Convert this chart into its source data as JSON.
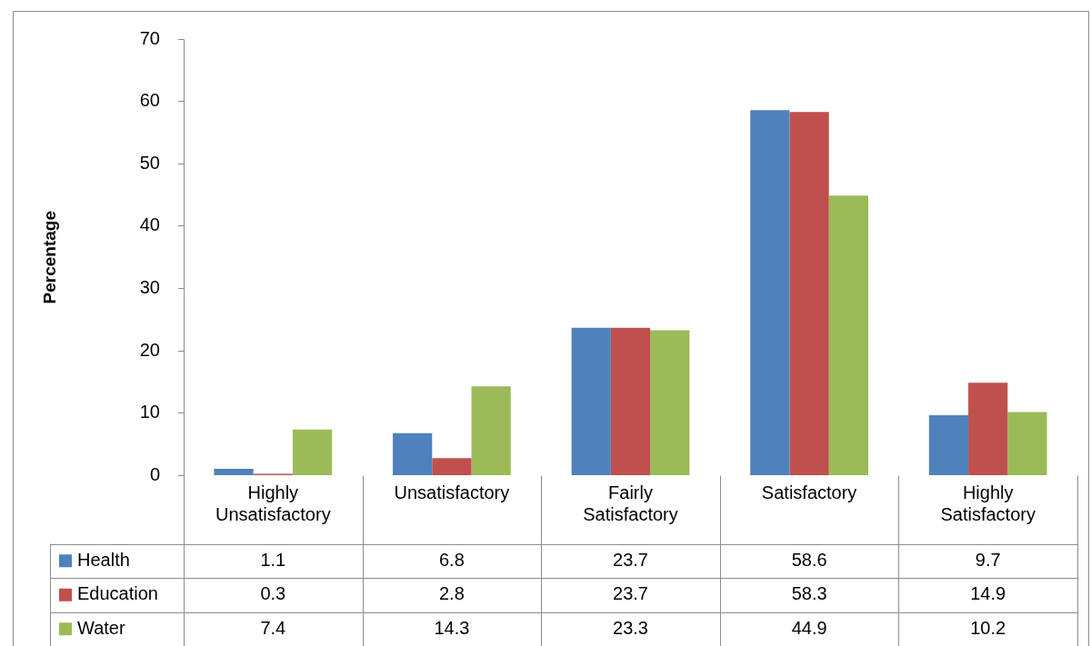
{
  "chart_data": {
    "type": "bar",
    "ylabel": "Percentage",
    "categories": [
      "Highly Unsatisfactory",
      "Unsatisfactory",
      "Fairly Satisfactory",
      "Satisfactory",
      "Highly Satisfactory"
    ],
    "series": [
      {
        "name": "Health",
        "color": "#4f81bd",
        "values": [
          1.1,
          6.8,
          23.7,
          58.6,
          9.7
        ]
      },
      {
        "name": "Education",
        "color": "#c0504d",
        "values": [
          0.3,
          2.8,
          23.7,
          58.3,
          14.9
        ]
      },
      {
        "name": "Water",
        "color": "#9bbb59",
        "values": [
          7.4,
          14.3,
          23.3,
          44.9,
          10.2
        ]
      }
    ],
    "ylim": [
      0,
      70
    ],
    "yticks": [
      0,
      10,
      20,
      30,
      40,
      50,
      60,
      70
    ],
    "grid": false,
    "legend": "bottom",
    "data_labels": true
  }
}
